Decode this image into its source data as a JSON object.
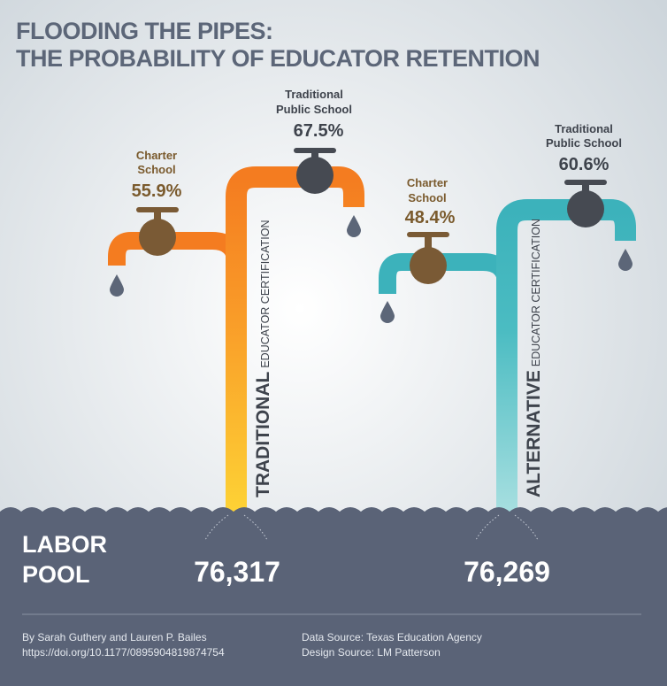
{
  "title": [
    "FLOODING THE PIPES:",
    "THE PROBABILITY OF EDUCATOR RETENTION"
  ],
  "labor_pool_label": [
    "LABOR",
    "POOL"
  ],
  "pipes": [
    {
      "label_bold": "TRADITIONAL",
      "label_rest": "EDUCATOR CERTIFICATION",
      "labor_pool": "76,317",
      "faucets": [
        {
          "label": [
            "Charter",
            "School"
          ],
          "value": "55.9%"
        },
        {
          "label": [
            "Traditional",
            "Public School"
          ],
          "value": "67.5%"
        }
      ]
    },
    {
      "label_bold": "ALTERNATIVE",
      "label_rest": "EDUCATOR CERTIFICATION",
      "labor_pool": "76,269",
      "faucets": [
        {
          "label": [
            "Charter",
            "School"
          ],
          "value": "48.4%"
        },
        {
          "label": [
            "Traditional",
            "Public School"
          ],
          "value": "60.6%"
        }
      ]
    }
  ],
  "footer": {
    "authors": "By Sarah Guthery and Lauren P. Bailes",
    "doi": "https://doi.org/10.1177/0895904819874754",
    "data_source": "Data Source: Texas Education Agency",
    "design_source": "Design Source: LM Patterson"
  }
}
